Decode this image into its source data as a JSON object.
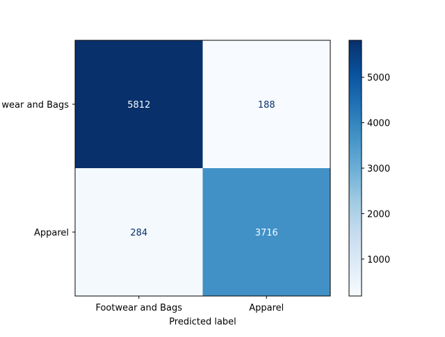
{
  "chart_data": {
    "type": "heatmap",
    "title": "",
    "xlabel": "Predicted label",
    "ylabel": "",
    "x_categories": [
      "Footwear and Bags",
      "Apparel"
    ],
    "y_categories": [
      "wear and Bags",
      "Apparel"
    ],
    "values": [
      [
        5812,
        188
      ],
      [
        284,
        3716
      ]
    ],
    "colormap": "Blues",
    "colorbar": {
      "range": [
        188,
        5812
      ],
      "ticks": [
        1000,
        2000,
        3000,
        4000,
        5000
      ]
    },
    "colors": {
      "low": "#f7fbff",
      "high": "#08306b",
      "text_on_dark": "#f7fbff",
      "text_on_light": "#08306b"
    },
    "grid": false
  }
}
